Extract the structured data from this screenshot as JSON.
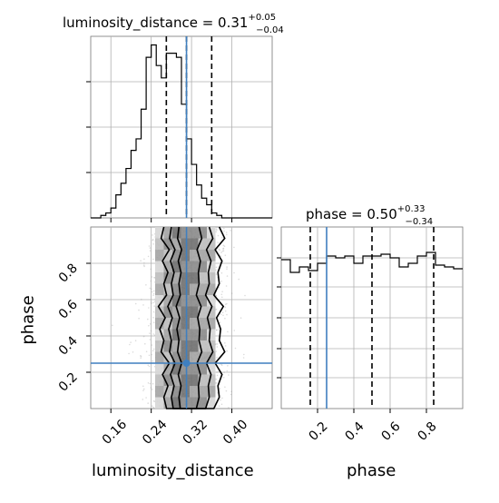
{
  "chart_data": [
    {
      "type": "histogram",
      "panel": "luminosity_distance-1d",
      "title": {
        "prefix": "luminosity_distance = 0.31",
        "sup": "+0.05",
        "sub": "−0.04"
      },
      "x": {
        "min": 0.12,
        "max": 0.48
      },
      "bins_left": [
        0.12,
        0.13,
        0.14,
        0.15,
        0.16,
        0.17,
        0.18,
        0.19,
        0.2,
        0.21,
        0.22,
        0.23,
        0.24,
        0.25,
        0.26,
        0.27,
        0.28,
        0.29,
        0.3,
        0.31,
        0.32,
        0.33,
        0.34,
        0.35,
        0.36,
        0.37,
        0.38,
        0.39,
        0.4,
        0.41,
        0.42,
        0.43,
        0.44,
        0.45,
        0.46,
        0.47
      ],
      "bin_width": 0.01,
      "counts": [
        0.0,
        0.0,
        0.3,
        0.6,
        1.2,
        2.8,
        4.2,
        6.0,
        8.2,
        9.6,
        13.2,
        19.5,
        21.0,
        18.5,
        17.0,
        20.0,
        20.0,
        19.5,
        13.8,
        9.6,
        6.5,
        4.0,
        2.4,
        1.6,
        0.6,
        0.3,
        0.0,
        0.0,
        0.0,
        0.0,
        0.0,
        0.0,
        0.0,
        0.0,
        0.0,
        0.0
      ],
      "quantile_lines": [
        0.27,
        0.36
      ],
      "median_line": 0.31,
      "truth_value": 0.31,
      "grid": true
    },
    {
      "type": "histogram",
      "panel": "phase-1d",
      "title": {
        "prefix": "phase = 0.50",
        "sup": "+0.33",
        "sub": "−0.34"
      },
      "x": {
        "min": 0.0,
        "max": 1.0
      },
      "bins_left": [
        0.0,
        0.05,
        0.1,
        0.15,
        0.2,
        0.25,
        0.3,
        0.35,
        0.4,
        0.45,
        0.5,
        0.55,
        0.6,
        0.65,
        0.7,
        0.75,
        0.8,
        0.85,
        0.9,
        0.95
      ],
      "bin_width": 0.05,
      "counts": [
        0.82,
        0.75,
        0.78,
        0.76,
        0.8,
        0.84,
        0.83,
        0.84,
        0.8,
        0.84,
        0.84,
        0.85,
        0.83,
        0.78,
        0.8,
        0.84,
        0.86,
        0.79,
        0.78,
        0.77
      ],
      "ylim": [
        0,
        1.0
      ],
      "quantile_lines": [
        0.16,
        0.5,
        0.84
      ],
      "truth_value": 0.25,
      "grid": true
    },
    {
      "type": "contour-scatter",
      "panel": "luminosity_distance-vs-phase",
      "x": {
        "label": "luminosity_distance",
        "min": 0.12,
        "max": 0.48,
        "ticks": [
          "0.16",
          "0.24",
          "0.32",
          "0.40"
        ]
      },
      "y": {
        "label": "phase",
        "min": 0.0,
        "max": 1.0,
        "ticks": [
          "0.2",
          "0.4",
          "0.6",
          "0.8"
        ]
      },
      "truth": {
        "x": 0.31,
        "y": 0.25
      },
      "contours": [
        {
          "level": "outer",
          "x": [
            0.265,
            0.375
          ],
          "y": [
            0.0,
            1.0
          ]
        },
        {
          "level": "mid",
          "x": [
            0.28,
            0.355
          ],
          "y": [
            0.0,
            1.0
          ]
        },
        {
          "level": "inner",
          "x": [
            0.295,
            0.335
          ],
          "y": [
            0.0,
            1.0
          ]
        }
      ],
      "grid": true
    }
  ],
  "phase_axis": {
    "ticks": [
      "0.2",
      "0.4",
      "0.6",
      "0.8"
    ],
    "label": "phase"
  },
  "colors": {
    "truth": "#3f7fbf",
    "hist": "#000000",
    "grid": "#b0b0b0",
    "points": "#9a9a9a"
  }
}
